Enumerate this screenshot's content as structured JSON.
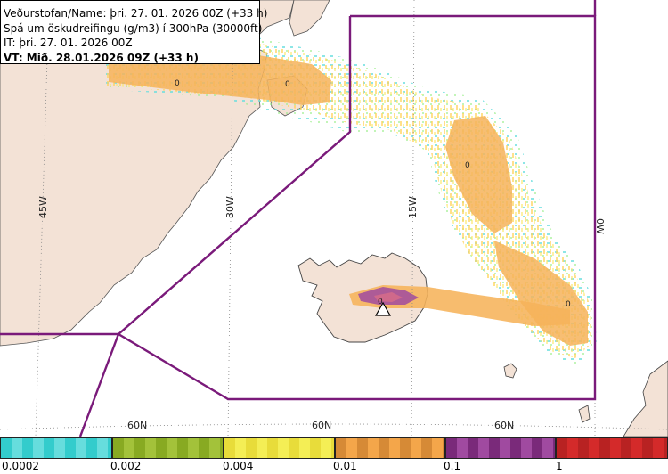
{
  "info": {
    "line1": "Veðurstofan/Name: þri. 27. 01. 2026 00Z (+33 h)",
    "line2": "Spá um öskudreifingu (g/m3) í 300hPa (30000ft)",
    "line3": "IT: þri. 27. 01. 2026 00Z",
    "line4": "VT: Mið. 28.01.2026 09Z (+33 h)"
  },
  "graticule": {
    "lon_45": "45W",
    "lon_30": "30W",
    "lon_15": "15W",
    "lon_0": "0W",
    "lat_1": "60N",
    "lat_2": "60N",
    "lat_3": "60N"
  },
  "contour_labels": {
    "c1": "0",
    "c2": "0",
    "c3": "0",
    "c4": "0",
    "c5": "0"
  },
  "legend": {
    "l1": "0.0002",
    "l2": "0.002",
    "l3": "0.004",
    "l4": "0.01",
    "l5": "0.1",
    "l6": "1"
  },
  "colors": {
    "land": "#f3e2d6",
    "sea": "#ffffff",
    "fir_boundary": "#7a1a7a",
    "ash_0002": "#33cccc",
    "ash_002": "#88aa22",
    "ash_004": "#f4ee55",
    "ash_01": "#f4a64a",
    "ash_1": "#a04aa0",
    "ash_high": "#d42a2a"
  }
}
